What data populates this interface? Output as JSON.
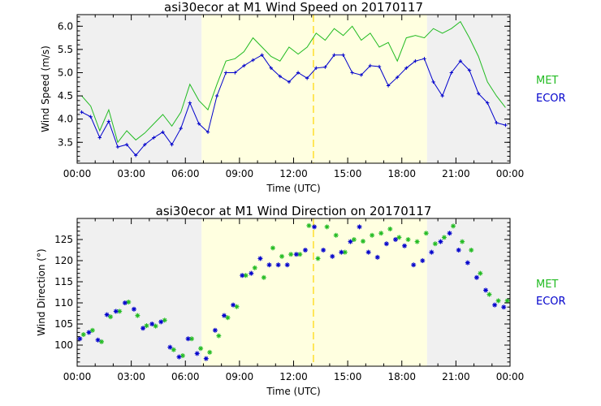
{
  "chart_data": [
    {
      "type": "line",
      "title": "asi30ecor at M1 Wind Speed on 20170117",
      "xlabel": "Time (UTC)",
      "ylabel": "Wind Speed (m/s)",
      "xlim": [
        0,
        24
      ],
      "ylim": [
        3.05,
        6.25
      ],
      "x_ticks": [
        "00:00",
        "03:00",
        "06:00",
        "09:00",
        "12:00",
        "15:00",
        "18:00",
        "21:00",
        "00:00"
      ],
      "y_ticks": [
        "3.5",
        "4.0",
        "4.5",
        "5.0",
        "5.5",
        "6.0"
      ],
      "y_tick_values": [
        3.5,
        4.0,
        4.5,
        5.0,
        5.5,
        6.0
      ],
      "shading": [
        {
          "from": 0,
          "to": 6.9,
          "color": "#f0f0f0"
        },
        {
          "from": 6.9,
          "to": 19.4,
          "color": "#ffffe0"
        },
        {
          "from": 19.4,
          "to": 24,
          "color": "#f0f0f0"
        }
      ],
      "marker_line": {
        "x": 13.1,
        "color": "#ffd700"
      },
      "series": [
        {
          "name": "MET",
          "color": "#22bb22",
          "style": "line",
          "x": [
            0.25,
            0.75,
            1.25,
            1.75,
            2.25,
            2.75,
            3.25,
            3.75,
            4.25,
            4.75,
            5.25,
            5.75,
            6.25,
            6.75,
            7.25,
            7.75,
            8.25,
            8.75,
            9.25,
            9.75,
            10.25,
            10.75,
            11.25,
            11.75,
            12.25,
            12.75,
            13.25,
            13.75,
            14.25,
            14.75,
            15.25,
            15.75,
            16.25,
            16.75,
            17.25,
            17.75,
            18.25,
            18.75,
            19.25,
            19.75,
            20.25,
            20.75,
            21.25,
            21.75,
            22.25,
            22.75,
            23.25,
            23.75
          ],
          "values": [
            4.5,
            4.28,
            3.75,
            4.2,
            3.5,
            3.75,
            3.55,
            3.7,
            3.9,
            4.1,
            3.85,
            4.15,
            4.75,
            4.4,
            4.2,
            4.75,
            5.25,
            5.3,
            5.45,
            5.75,
            5.55,
            5.35,
            5.25,
            5.55,
            5.4,
            5.55,
            5.85,
            5.7,
            5.95,
            5.8,
            6.0,
            5.7,
            5.85,
            5.55,
            5.65,
            5.25,
            5.75,
            5.8,
            5.75,
            5.95,
            5.85,
            5.95,
            6.1,
            5.75,
            5.35,
            4.8,
            4.5,
            4.25
          ]
        },
        {
          "name": "ECOR",
          "color": "#0000cc",
          "style": "line+marker",
          "x": [
            0.25,
            0.75,
            1.25,
            1.75,
            2.25,
            2.75,
            3.25,
            3.75,
            4.25,
            4.75,
            5.25,
            5.75,
            6.25,
            6.75,
            7.25,
            7.75,
            8.25,
            8.75,
            9.25,
            9.75,
            10.25,
            10.75,
            11.25,
            11.75,
            12.25,
            12.75,
            13.25,
            13.75,
            14.25,
            14.75,
            15.25,
            15.75,
            16.25,
            16.75,
            17.25,
            17.75,
            18.25,
            18.75,
            19.25,
            19.75,
            20.25,
            20.75,
            21.25,
            21.75,
            22.25,
            22.75,
            23.25,
            23.75
          ],
          "values": [
            4.15,
            4.05,
            3.6,
            3.95,
            3.4,
            3.45,
            3.22,
            3.45,
            3.6,
            3.72,
            3.45,
            3.8,
            4.35,
            3.9,
            3.72,
            4.5,
            5.0,
            5.0,
            5.15,
            5.27,
            5.38,
            5.1,
            4.92,
            4.8,
            5.0,
            4.88,
            5.1,
            5.12,
            5.38,
            5.38,
            5.0,
            4.95,
            5.15,
            5.13,
            4.72,
            4.9,
            5.1,
            5.25,
            5.3,
            4.8,
            4.5,
            5.0,
            5.25,
            5.05,
            4.55,
            4.35,
            3.92,
            3.87
          ]
        }
      ],
      "legend": [
        "MET",
        "ECOR"
      ],
      "legend_position": "right"
    },
    {
      "type": "scatter",
      "title": "asi30ecor at M1 Wind Direction on 20170117",
      "xlabel": "Time (UTC)",
      "ylabel": "Wind Direction (°)",
      "xlim": [
        0,
        24
      ],
      "ylim": [
        95,
        130
      ],
      "x_ticks": [
        "00:00",
        "03:00",
        "06:00",
        "09:00",
        "12:00",
        "15:00",
        "18:00",
        "21:00",
        "00:00"
      ],
      "y_ticks": [
        "100",
        "105",
        "110",
        "115",
        "120",
        "125"
      ],
      "y_tick_values": [
        100,
        105,
        110,
        115,
        120,
        125
      ],
      "shading": [
        {
          "from": 0,
          "to": 6.9,
          "color": "#f0f0f0"
        },
        {
          "from": 6.9,
          "to": 19.4,
          "color": "#ffffe0"
        },
        {
          "from": 19.4,
          "to": 24,
          "color": "#f0f0f0"
        }
      ],
      "marker_line": {
        "x": 13.1,
        "color": "#ffd700"
      },
      "series": [
        {
          "name": "MET",
          "color": "#22bb22",
          "style": "marker",
          "x": [
            0.35,
            0.85,
            1.35,
            1.85,
            2.35,
            2.85,
            3.35,
            3.85,
            4.35,
            4.85,
            5.35,
            5.85,
            6.35,
            6.85,
            7.35,
            7.85,
            8.35,
            8.85,
            9.35,
            9.85,
            10.35,
            10.85,
            11.35,
            11.85,
            12.35,
            12.85,
            13.35,
            13.85,
            14.35,
            14.85,
            15.35,
            15.85,
            16.35,
            16.85,
            17.35,
            17.85,
            18.35,
            18.85,
            19.35,
            19.85,
            20.35,
            20.85,
            21.35,
            21.85,
            22.35,
            22.85,
            23.35,
            23.85
          ],
          "values": [
            102.5,
            103.5,
            100.8,
            106.7,
            108,
            110.2,
            107,
            104.6,
            104.5,
            105.9,
            98.9,
            97.5,
            101.5,
            99.2,
            98.3,
            102.2,
            106.5,
            109.1,
            116.5,
            118.3,
            116,
            123,
            121,
            121.5,
            121.5,
            128.3,
            120.5,
            128,
            126,
            122,
            125,
            124.6,
            126,
            126.5,
            127.5,
            125.5,
            125,
            124.5,
            126.5,
            124,
            125.5,
            128.2,
            124.5,
            122.5,
            117,
            112,
            110.5,
            110.5
          ]
        },
        {
          "name": "ECOR",
          "color": "#0000cc",
          "style": "marker",
          "x": [
            0.15,
            0.65,
            1.15,
            1.65,
            2.15,
            2.65,
            3.15,
            3.65,
            4.15,
            4.65,
            5.15,
            5.65,
            6.15,
            6.65,
            7.15,
            7.65,
            8.15,
            8.65,
            9.15,
            9.65,
            10.15,
            10.65,
            11.15,
            11.65,
            12.15,
            12.65,
            13.15,
            13.65,
            14.15,
            14.65,
            15.15,
            15.65,
            16.15,
            16.65,
            17.15,
            17.65,
            18.15,
            18.65,
            19.15,
            19.65,
            20.15,
            20.65,
            21.15,
            21.65,
            22.15,
            22.65,
            23.15,
            23.65
          ],
          "values": [
            101.5,
            103,
            101.2,
            107.2,
            108,
            110,
            108.5,
            104,
            105,
            105.5,
            99.5,
            97.2,
            101.5,
            98,
            96.8,
            103.5,
            107,
            109.5,
            116.5,
            117,
            120.5,
            119,
            119,
            119,
            121.5,
            122.5,
            128,
            122.5,
            121,
            122,
            124.5,
            128,
            122,
            120.8,
            124,
            125,
            123.5,
            119,
            120,
            122,
            124.5,
            126.5,
            122.5,
            119.5,
            116,
            113,
            109.5,
            109
          ]
        }
      ],
      "legend": [
        "MET",
        "ECOR"
      ],
      "legend_position": "right"
    }
  ]
}
